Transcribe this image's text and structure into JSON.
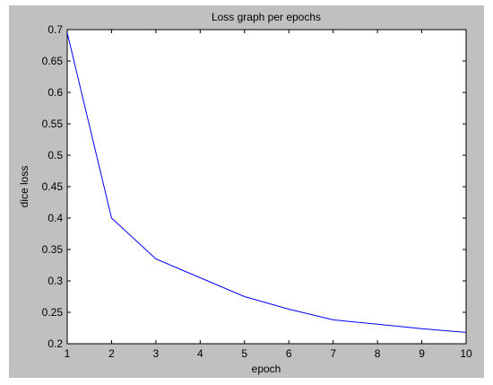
{
  "chart_data": {
    "type": "line",
    "title": "Loss graph per epochs",
    "xlabel": "epoch",
    "ylabel": "dice loss",
    "xlim": [
      1,
      10
    ],
    "ylim": [
      0.2,
      0.7
    ],
    "x_ticks": [
      1,
      2,
      3,
      4,
      5,
      6,
      7,
      8,
      9,
      10
    ],
    "y_ticks": [
      0.2,
      0.25,
      0.3,
      0.35,
      0.4,
      0.45,
      0.5,
      0.55,
      0.6,
      0.65,
      0.7
    ],
    "grid": false,
    "series": [
      {
        "color": "#0000ff",
        "x": [
          1,
          2,
          3,
          4,
          5,
          6,
          7,
          8,
          9,
          10
        ],
        "y": [
          0.695,
          0.4,
          0.335,
          0.305,
          0.275,
          0.255,
          0.238,
          0.231,
          0.224,
          0.218
        ]
      }
    ]
  },
  "colors": {
    "figure_background": "#c0c0c0",
    "axes_background": "#ffffff",
    "line": "#0000ff"
  }
}
